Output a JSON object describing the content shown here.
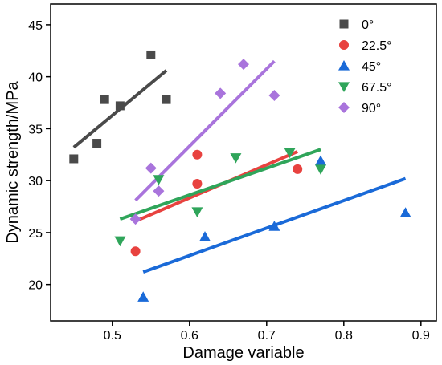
{
  "chart_data": {
    "type": "scatter",
    "title": "",
    "xlabel": "Damage variable",
    "ylabel": "Dynamic strength/MPa",
    "xlim": [
      0.42,
      0.92
    ],
    "ylim": [
      16.5,
      47
    ],
    "xticks": [
      0.5,
      0.6,
      0.7,
      0.8,
      0.9
    ],
    "yticks": [
      20,
      25,
      30,
      35,
      40,
      45
    ],
    "xtick_labels": [
      "0.5",
      "0.6",
      "0.7",
      "0.8",
      "0.9"
    ],
    "ytick_labels": [
      "20",
      "25",
      "30",
      "35",
      "40",
      "45"
    ],
    "grid": false,
    "legend_position": "top-right",
    "series": [
      {
        "name": "0°",
        "color": "#4a4a4a",
        "marker": "square",
        "points": [
          [
            0.45,
            32.1
          ],
          [
            0.48,
            33.6
          ],
          [
            0.49,
            37.8
          ],
          [
            0.51,
            37.2
          ],
          [
            0.55,
            42.1
          ],
          [
            0.57,
            37.8
          ]
        ],
        "fit": [
          [
            0.45,
            33.2
          ],
          [
            0.57,
            40.6
          ]
        ]
      },
      {
        "name": "22.5°",
        "color": "#e8423f",
        "marker": "circle",
        "points": [
          [
            0.53,
            23.2
          ],
          [
            0.61,
            29.7
          ],
          [
            0.61,
            32.5
          ],
          [
            0.74,
            31.1
          ]
        ],
        "fit": [
          [
            0.53,
            26.1
          ],
          [
            0.74,
            32.8
          ]
        ]
      },
      {
        "name": "45°",
        "color": "#1a6ad8",
        "marker": "triangle-up",
        "points": [
          [
            0.54,
            18.8
          ],
          [
            0.62,
            24.6
          ],
          [
            0.71,
            25.6
          ],
          [
            0.77,
            31.9
          ],
          [
            0.88,
            26.9
          ]
        ],
        "fit": [
          [
            0.54,
            21.2
          ],
          [
            0.88,
            30.2
          ]
        ]
      },
      {
        "name": "67.5°",
        "color": "#2fa55a",
        "marker": "triangle-down",
        "points": [
          [
            0.51,
            24.2
          ],
          [
            0.56,
            30.1
          ],
          [
            0.61,
            27.0
          ],
          [
            0.66,
            32.2
          ],
          [
            0.73,
            32.7
          ],
          [
            0.77,
            31.1
          ]
        ],
        "fit": [
          [
            0.51,
            26.3
          ],
          [
            0.77,
            33.0
          ]
        ]
      },
      {
        "name": "90°",
        "color": "#a974dc",
        "marker": "diamond",
        "points": [
          [
            0.53,
            26.3
          ],
          [
            0.55,
            31.2
          ],
          [
            0.56,
            29.0
          ],
          [
            0.64,
            38.4
          ],
          [
            0.67,
            41.2
          ],
          [
            0.71,
            38.2
          ]
        ],
        "fit": [
          [
            0.53,
            28.1
          ],
          [
            0.71,
            41.5
          ]
        ]
      }
    ]
  }
}
